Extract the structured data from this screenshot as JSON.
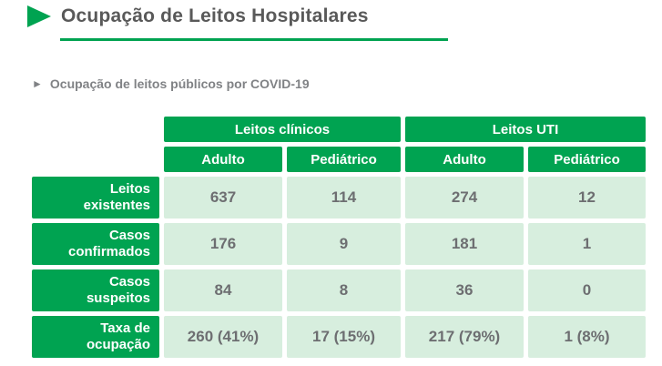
{
  "header": {
    "title": "Ocupação de Leitos Hospitalares"
  },
  "subtitle": {
    "arrow": "►",
    "label": "Ocupação de leitos públicos por COVID-19"
  },
  "table": {
    "col_groups": [
      {
        "label": "Leitos clínicos"
      },
      {
        "label": "Leitos UTI"
      }
    ],
    "sub_headers": [
      "Adulto",
      "Pediátrico",
      "Adulto",
      "Pediátrico"
    ],
    "rows": [
      {
        "label": "Leitos\nexistentes",
        "values": [
          "637",
          "114",
          "274",
          "12"
        ]
      },
      {
        "label": "Casos\nconfirmados",
        "values": [
          "176",
          "9",
          "181",
          "1"
        ]
      },
      {
        "label": "Casos\nsuspeitos",
        "values": [
          "84",
          "8",
          "36",
          "0"
        ]
      },
      {
        "label": "Taxa de\nocupação",
        "values": [
          "260 (41%)",
          "17 (15%)",
          "217 (79%)",
          "1 (8%)"
        ]
      }
    ]
  },
  "colors": {
    "green": "#00a351",
    "light_green": "#d7eede",
    "title_text": "#595959",
    "subtitle_text": "#808285",
    "value_text": "#6d6e71"
  },
  "chart_data": {
    "type": "table",
    "title": "Ocupação de leitos públicos por COVID-19",
    "columns": [
      "Leitos clínicos - Adulto",
      "Leitos clínicos - Pediátrico",
      "Leitos UTI - Adulto",
      "Leitos UTI - Pediátrico"
    ],
    "rows": [
      {
        "label": "Leitos existentes",
        "values": [
          637,
          114,
          274,
          12
        ]
      },
      {
        "label": "Casos confirmados",
        "values": [
          176,
          9,
          181,
          1
        ]
      },
      {
        "label": "Casos suspeitos",
        "values": [
          84,
          8,
          36,
          0
        ]
      },
      {
        "label": "Taxa de ocupação",
        "values": [
          "260 (41%)",
          "17 (15%)",
          "217 (79%)",
          "1 (8%)"
        ]
      }
    ]
  }
}
